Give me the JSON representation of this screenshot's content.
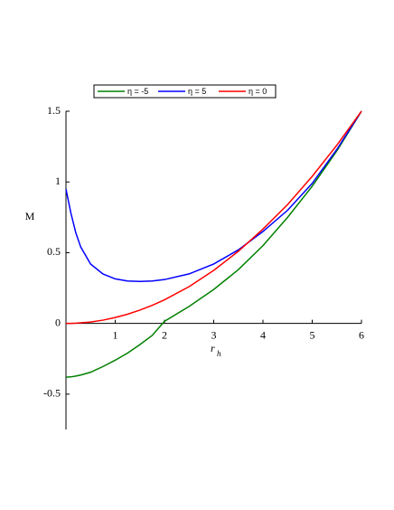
{
  "chart_data": {
    "type": "line",
    "x_label": "r",
    "x_label_sub": "h",
    "y_label": "M",
    "x": [
      0,
      0.1,
      0.2,
      0.3,
      0.5,
      0.75,
      1,
      1.25,
      1.5,
      1.75,
      2,
      2.5,
      3,
      3.5,
      4,
      4.5,
      5,
      5.5,
      6
    ],
    "series": [
      {
        "name": "η = -5",
        "color": "#008000",
        "values": [
          -0.38,
          -0.378,
          -0.372,
          -0.365,
          -0.345,
          -0.305,
          -0.26,
          -0.21,
          -0.15,
          -0.085,
          0.015,
          0.12,
          0.24,
          0.38,
          0.55,
          0.75,
          0.97,
          1.22,
          1.5
        ]
      },
      {
        "name": "η = 5",
        "color": "#0000ff",
        "values": [
          0.95,
          0.78,
          0.64,
          0.54,
          0.42,
          0.35,
          0.315,
          0.3,
          0.297,
          0.3,
          0.31,
          0.35,
          0.42,
          0.52,
          0.65,
          0.8,
          0.99,
          1.23,
          1.5
        ]
      },
      {
        "name": "η = 0",
        "color": "#ff0000",
        "values": [
          0,
          0.0004,
          0.0017,
          0.004,
          0.01,
          0.023,
          0.042,
          0.065,
          0.094,
          0.128,
          0.167,
          0.26,
          0.375,
          0.51,
          0.667,
          0.84,
          1.04,
          1.26,
          1.5
        ]
      }
    ],
    "xlim": [
      0,
      6
    ],
    "ylim": [
      -0.75,
      1.5
    ],
    "xticks": [
      1,
      2,
      3,
      4,
      5,
      6
    ],
    "yticks": [
      -0.5,
      0,
      0.5,
      1,
      1.5
    ],
    "legend": "top"
  }
}
